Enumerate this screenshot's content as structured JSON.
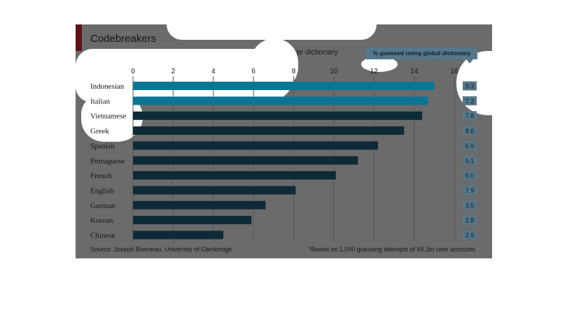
{
  "chart_data": {
    "type": "bar",
    "orientation": "horizontal",
    "title": "Codebreakers",
    "subtitle": "% of Yahoo! users' passwords guessed* using same-language dictionary",
    "categories": [
      "Indonesian",
      "Italian",
      "Vietnamese",
      "Greek",
      "Spanish",
      "Portuguese",
      "French",
      "English",
      "German",
      "Korean",
      "Chinese"
    ],
    "series": [
      {
        "values": [
          15.0,
          14.7,
          14.4,
          13.5,
          12.2,
          11.2,
          10.1,
          8.1,
          6.6,
          5.9,
          4.5
        ]
      }
    ],
    "global_column": {
      "header": "% guessed using global dictionary",
      "labels": [
        "9.3",
        "7.2",
        "7.8",
        "8.6",
        "6.9",
        "5.1",
        "5.0",
        "7.9",
        "3.5",
        "2.8",
        "2.9"
      ]
    },
    "x_ticks": [
      0,
      2,
      4,
      6,
      8,
      10,
      12,
      14,
      16
    ],
    "xlim": [
      0,
      16
    ],
    "grid": true,
    "xlabel": "",
    "ylabel": "",
    "source": "Source: Joseph Bonneau, University of Cambridge",
    "footnote": "*Based on 1,000 guessing attempts of 69.3m user accounts",
    "colors": {
      "bar": "#0e2a36",
      "bar_highlight": "#0b7596",
      "background": "#6b6b6b",
      "gridline": "#545454",
      "global_box": "#56778a",
      "accent": "#5a1418",
      "highlight": "#ffffff"
    }
  }
}
